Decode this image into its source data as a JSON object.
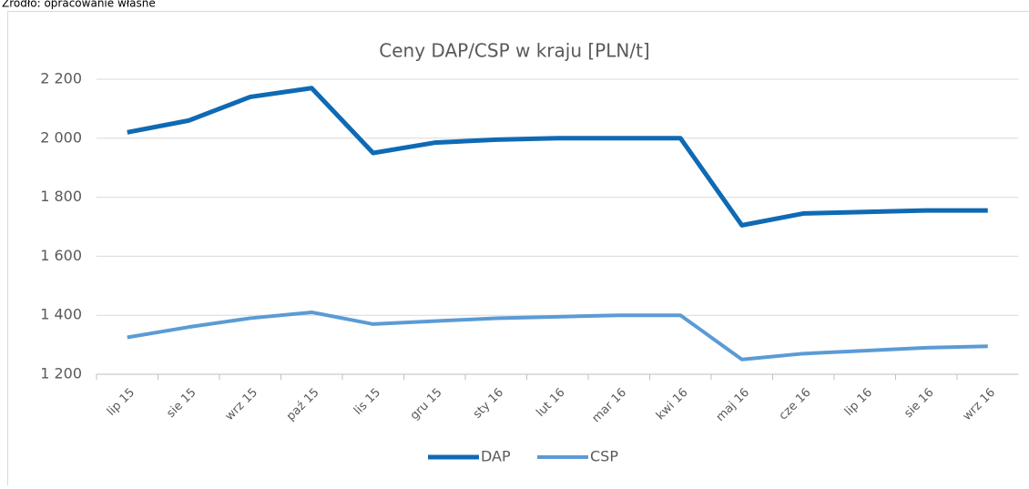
{
  "source": "Źródło: opracowanie własne",
  "chart_data": {
    "type": "line",
    "title": "Ceny DAP/CSP w kraju [PLN/t]",
    "categories": [
      "lip 15",
      "sie 15",
      "wrz 15",
      "paź 15",
      "lis 15",
      "gru 15",
      "sty 16",
      "lut 16",
      "mar 16",
      "kwi 16",
      "maj 16",
      "cze 16",
      "lip 16",
      "sie 16",
      "wrz 16"
    ],
    "series": [
      {
        "name": "DAP",
        "color": "#0f6ab4",
        "values": [
          2020,
          2060,
          2140,
          2170,
          1950,
          1985,
          1995,
          2000,
          2000,
          2000,
          1705,
          1745,
          1750,
          1755,
          1755
        ]
      },
      {
        "name": "CSP",
        "color": "#5b9bd5",
        "values": [
          1325,
          1360,
          1390,
          1410,
          1370,
          1380,
          1390,
          1395,
          1400,
          1400,
          1250,
          1270,
          1280,
          1290,
          1295
        ]
      }
    ],
    "ylim": [
      1200,
      2200
    ],
    "yticks": [
      {
        "value": 1200,
        "label": "1 200"
      },
      {
        "value": 1400,
        "label": "1 400"
      },
      {
        "value": 1600,
        "label": "1 600"
      },
      {
        "value": 1800,
        "label": "1 800"
      },
      {
        "value": 2000,
        "label": "2 000"
      },
      {
        "value": 2200,
        "label": "2 200"
      }
    ],
    "grid": true,
    "legend": "bottom"
  }
}
